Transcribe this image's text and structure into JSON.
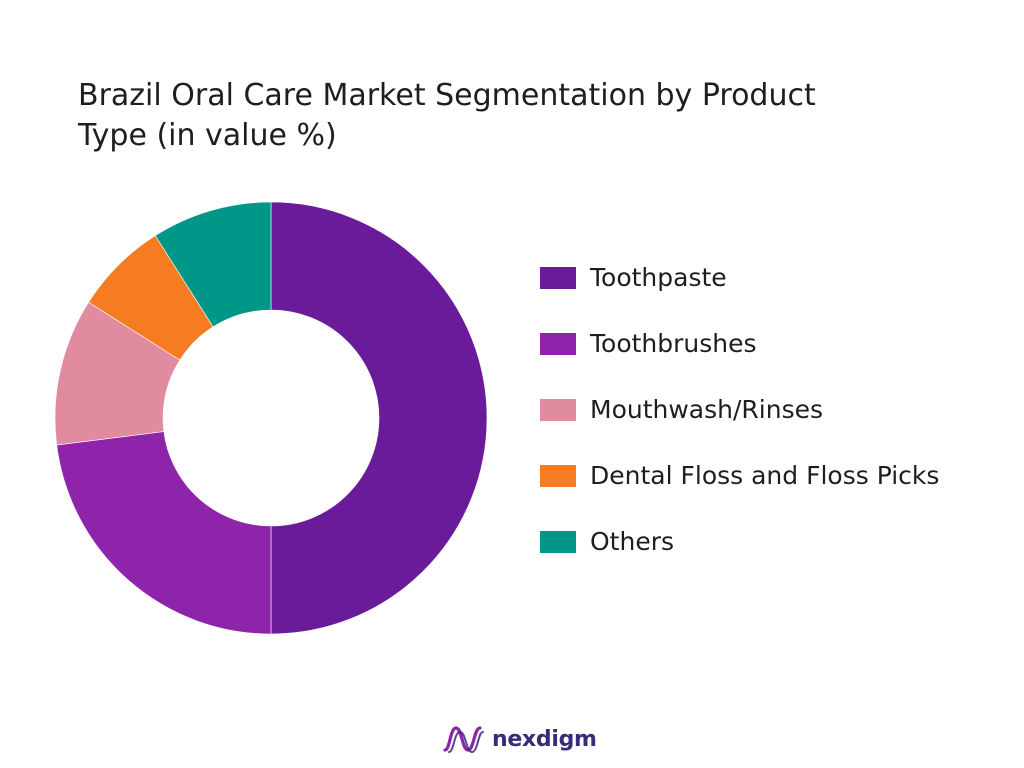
{
  "chart_data": {
    "type": "pie",
    "title_lines": [
      "Brazil Oral Care Market Segmentation by Product",
      "Type (in value %)"
    ],
    "categories": [
      "Toothpaste",
      "Toothbrushes",
      "Mouthwash/Rinses",
      "Dental Floss and Floss Picks",
      "Others"
    ],
    "values": [
      50,
      23,
      11,
      7,
      9
    ],
    "colors": [
      "#6a1b9a",
      "#8e24aa",
      "#e08ba0",
      "#f57c20",
      "#009688"
    ],
    "donut": true,
    "legend_position": "right"
  },
  "brand": {
    "name": "nexdigm",
    "logo_icon": "nexdigm-wave-icon",
    "accent": "#8e24aa"
  }
}
